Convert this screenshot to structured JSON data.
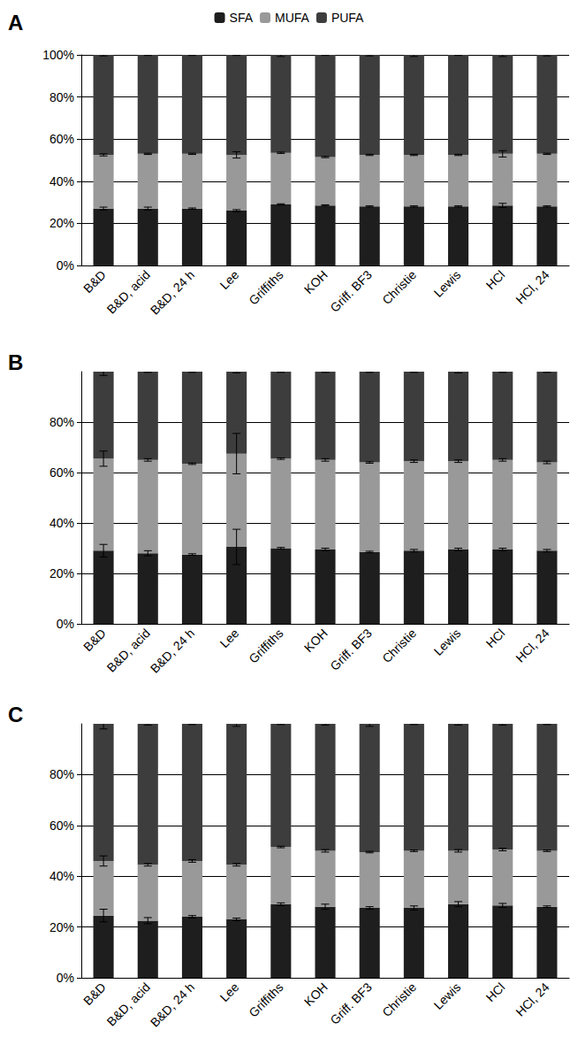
{
  "chart_data": [
    {
      "type": "bar",
      "title": "A",
      "stacked": true,
      "legend": "top",
      "grid": true,
      "categories": [
        "B&D",
        "B&D, acid",
        "B&D, 24 h",
        "Lee",
        "Griffiths",
        "KOH",
        "Griff. BF3",
        "Christie",
        "Lewis",
        "HCl",
        "HCl, 24"
      ],
      "ylim": [
        0,
        100
      ],
      "yticks": [
        {
          "value": 0,
          "label": "0%"
        },
        {
          "value": 20,
          "label": "20%"
        },
        {
          "value": 40,
          "label": "40%"
        },
        {
          "value": 60,
          "label": "60%"
        },
        {
          "value": 80,
          "label": "80%"
        },
        {
          "value": 100,
          "label": "100%"
        }
      ],
      "series": [
        {
          "name": "SFA",
          "color": "#1e1e1e",
          "values": [
            27,
            27,
            27,
            26,
            29,
            28.5,
            28,
            28,
            28,
            28.5,
            28
          ],
          "errors": [
            0.7,
            0.7,
            0.3,
            0.5,
            0.3,
            0.3,
            0.3,
            0.3,
            0.3,
            1,
            0.3
          ]
        },
        {
          "name": "MUFA",
          "color": "#999999",
          "values": [
            25.5,
            26,
            26,
            26.5,
            24.5,
            23,
            24.5,
            24.5,
            24.5,
            24.5,
            25
          ],
          "errors": [
            0.5,
            0.3,
            0.3,
            1.5,
            0.3,
            0.3,
            0.3,
            0.3,
            0.3,
            1.5,
            0.3
          ]
        },
        {
          "name": "PUFA",
          "color": "#3d3d3d",
          "values": [
            47.5,
            47,
            47,
            47.5,
            46.5,
            48.5,
            47.5,
            47.5,
            47.5,
            47,
            47
          ],
          "errors": [
            0.5,
            0.3,
            0.3,
            0.3,
            0.8,
            0.3,
            0.5,
            0.8,
            0.3,
            0.8,
            0.5
          ]
        }
      ]
    },
    {
      "type": "bar",
      "title": "B",
      "stacked": true,
      "grid": true,
      "categories": [
        "B&D",
        "B&D, acid",
        "B&D, 24 h",
        "Lee",
        "Griffiths",
        "KOH",
        "Griff. BF3",
        "Christie",
        "Lewis",
        "HCl",
        "HCl, 24"
      ],
      "ylim": [
        0,
        100
      ],
      "yticks": [
        {
          "value": 0,
          "label": "0%"
        },
        {
          "value": 20,
          "label": "20%"
        },
        {
          "value": 40,
          "label": "40%"
        },
        {
          "value": 60,
          "label": "60%"
        },
        {
          "value": 80,
          "label": "80%"
        }
      ],
      "series": [
        {
          "name": "SFA",
          "color": "#1e1e1e",
          "values": [
            29,
            28,
            27.5,
            30.5,
            30,
            29.5,
            28.5,
            29,
            29.5,
            29.5,
            29
          ],
          "errors": [
            2.5,
            1,
            0.3,
            7,
            0.3,
            0.5,
            0.3,
            0.5,
            0.5,
            0.5,
            0.5
          ]
        },
        {
          "name": "MUFA",
          "color": "#999999",
          "values": [
            36.5,
            37,
            36,
            37,
            35.5,
            35.5,
            35.5,
            35.5,
            35,
            35.5,
            35
          ],
          "errors": [
            3,
            0.5,
            0.3,
            8,
            0.3,
            0.5,
            0.3,
            0.5,
            0.5,
            0.5,
            0.5
          ]
        },
        {
          "name": "PUFA",
          "color": "#3d3d3d",
          "values": [
            34.5,
            35,
            36.5,
            32.5,
            34.5,
            35,
            36,
            35.5,
            35.5,
            35,
            36
          ],
          "errors": [
            1.5,
            0.3,
            0.3,
            0.5,
            0.3,
            0.3,
            0.3,
            0.3,
            0.5,
            0.3,
            0.3
          ]
        }
      ]
    },
    {
      "type": "bar",
      "title": "C",
      "stacked": true,
      "grid": true,
      "categories": [
        "B&D",
        "B&D, acid",
        "B&D, 24 h",
        "Lee",
        "Griffiths",
        "KOH",
        "Griff. BF3",
        "Christie",
        "Lewis",
        "HCl",
        "HCl, 24"
      ],
      "ylim": [
        0,
        100
      ],
      "yticks": [
        {
          "value": 0,
          "label": "0%"
        },
        {
          "value": 20,
          "label": "20%"
        },
        {
          "value": 40,
          "label": "40%"
        },
        {
          "value": 60,
          "label": "60%"
        },
        {
          "value": 80,
          "label": "80%"
        }
      ],
      "series": [
        {
          "name": "SFA",
          "color": "#1e1e1e",
          "values": [
            24.5,
            22.5,
            24,
            23,
            29,
            28,
            27.5,
            27.5,
            29,
            28.5,
            28
          ],
          "errors": [
            2.5,
            1.2,
            0.5,
            0.5,
            0.5,
            1,
            0.5,
            0.8,
            1,
            0.8,
            0.3
          ]
        },
        {
          "name": "MUFA",
          "color": "#999999",
          "values": [
            21.5,
            22,
            22,
            21.5,
            22.5,
            22,
            22,
            22.5,
            21,
            22,
            22
          ],
          "errors": [
            2,
            0.5,
            0.5,
            0.5,
            0.3,
            0.5,
            0.3,
            0.3,
            0.5,
            0.5,
            0.3
          ]
        },
        {
          "name": "PUFA",
          "color": "#3d3d3d",
          "values": [
            54,
            55.5,
            54,
            55.5,
            48.5,
            50,
            50.5,
            50,
            50,
            49.5,
            50
          ],
          "errors": [
            2,
            0.5,
            0.3,
            1,
            0.3,
            0.5,
            1,
            0.3,
            0.5,
            0.5,
            0.3
          ]
        }
      ]
    }
  ]
}
